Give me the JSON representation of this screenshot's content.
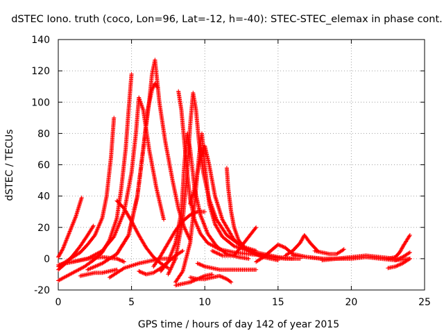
{
  "chart_data": {
    "type": "scatter",
    "title": "dSTEC Iono. truth (coco, Lon=96, Lat=-12, h=-40): STEC-STEC_elemax in phase cont.",
    "xlabel": "GPS time / hours of day 142 of year 2015",
    "ylabel": "dSTEC  / TECUs",
    "xlim": [
      0,
      25
    ],
    "ylim": [
      -20,
      140
    ],
    "xticks": [
      0,
      5,
      10,
      15,
      20,
      25
    ],
    "yticks": [
      -20,
      0,
      20,
      40,
      60,
      80,
      100,
      120,
      140
    ],
    "grid": true,
    "marker": "+",
    "color": "#ff0000",
    "arcs": [
      {
        "x": [
          0.0,
          0.3,
          0.6,
          0.9,
          1.2,
          1.4,
          1.6
        ],
        "y": [
          1,
          6,
          13,
          20,
          27,
          33,
          39
        ]
      },
      {
        "x": [
          0.0,
          0.5,
          1.0,
          1.5,
          2.0,
          2.4
        ],
        "y": [
          -7,
          -3,
          2,
          8,
          15,
          21
        ]
      },
      {
        "x": [
          0.0,
          0.5,
          1.0,
          1.5,
          2.0,
          2.5,
          3.0,
          3.3,
          3.6,
          3.8
        ],
        "y": [
          -5,
          -2,
          1,
          4,
          9,
          15,
          26,
          40,
          65,
          90
        ]
      },
      {
        "x": [
          0.0,
          0.6,
          1.2,
          1.8,
          2.4,
          3.0,
          3.5,
          4.0,
          4.3,
          4.6,
          4.8,
          5.0
        ],
        "y": [
          -14,
          -11,
          -8,
          -5,
          -1,
          4,
          12,
          26,
          45,
          70,
          95,
          118
        ]
      },
      {
        "x": [
          0.0,
          1.0,
          2.0,
          3.0,
          4.0,
          4.5
        ],
        "y": [
          -4,
          -2,
          0,
          1,
          0,
          -2
        ]
      },
      {
        "x": [
          1.5,
          2.0,
          2.5,
          3.0,
          3.5,
          4.0
        ],
        "y": [
          -11,
          -10,
          -9,
          -9,
          -8,
          -7
        ]
      },
      {
        "x": [
          1.0,
          2.0,
          3.0,
          3.8,
          4.5,
          5.0,
          5.3,
          5.5,
          5.8,
          6.2,
          6.7,
          7.2
        ],
        "y": [
          -2,
          0,
          5,
          14,
          30,
          55,
          80,
          103,
          95,
          70,
          45,
          25
        ]
      },
      {
        "x": [
          4.0,
          4.5,
          5.0,
          5.5,
          6.0,
          6.5,
          7.0,
          7.5
        ],
        "y": [
          37,
          32,
          24,
          15,
          7,
          1,
          -3,
          -6
        ]
      },
      {
        "x": [
          2.0,
          3.0,
          4.0,
          4.8,
          5.4,
          5.8,
          6.2,
          6.4,
          6.6,
          6.9,
          7.3,
          7.8,
          8.2,
          8.6,
          9.0
        ],
        "y": [
          -7,
          -3,
          3,
          15,
          40,
          70,
          100,
          118,
          127,
          100,
          75,
          50,
          32,
          20,
          12
        ]
      },
      {
        "x": [
          4.0,
          4.8,
          5.4,
          5.8,
          6.1,
          6.4,
          6.6,
          6.8
        ],
        "y": [
          3,
          15,
          40,
          70,
          95,
          108,
          112,
          109
        ]
      },
      {
        "x": [
          6.5,
          7.0,
          7.5,
          8.0,
          8.5,
          9.0,
          9.5,
          10.0
        ],
        "y": [
          -5,
          2,
          10,
          18,
          24,
          28,
          30,
          30
        ]
      },
      {
        "x": [
          3.5,
          4.5,
          5.5,
          6.0,
          6.5,
          7.0,
          7.5,
          8.0
        ],
        "y": [
          -12,
          -6,
          -3,
          -2,
          -1,
          0,
          0,
          0
        ]
      },
      {
        "x": [
          5.5,
          6.0,
          6.5,
          7.0,
          7.5,
          8.0,
          8.5
        ],
        "y": [
          -8,
          -10,
          -9,
          -6,
          -2,
          2,
          5
        ]
      },
      {
        "x": [
          7.0,
          7.5,
          8.0,
          8.4,
          8.6,
          8.8,
          9.0,
          9.3,
          9.7,
          10.2,
          10.8,
          11.5,
          12.3,
          13.0
        ],
        "y": [
          -8,
          -2,
          10,
          30,
          60,
          80,
          70,
          45,
          28,
          16,
          8,
          3,
          1,
          0
        ]
      },
      {
        "x": [
          8.2,
          8.4,
          8.6,
          8.8,
          9.0,
          9.3,
          9.7,
          10.2,
          11.0,
          12.0,
          13.0,
          14.0
        ],
        "y": [
          107,
          95,
          75,
          55,
          38,
          25,
          16,
          10,
          6,
          4,
          3,
          2
        ]
      },
      {
        "x": [
          7.5,
          8.0,
          8.5,
          8.8,
          9.0,
          9.2,
          9.4,
          9.6,
          9.9,
          10.3,
          10.8,
          11.5,
          12.5,
          13.5
        ],
        "y": [
          -10,
          0,
          25,
          55,
          85,
          106,
          95,
          75,
          55,
          38,
          25,
          15,
          8,
          5
        ]
      },
      {
        "x": [
          8.0,
          8.5,
          9.0,
          9.3,
          9.6,
          9.8,
          10.0,
          10.3,
          10.7,
          11.2,
          12.0,
          13.0,
          14.0,
          15.0,
          16.0
        ],
        "y": [
          -15,
          -8,
          10,
          35,
          65,
          80,
          60,
          35,
          22,
          14,
          8,
          5,
          3,
          1,
          0
        ]
      },
      {
        "x": [
          9.0,
          9.3,
          9.6,
          10.0,
          10.3,
          10.7,
          11.2,
          12.0,
          13.0,
          14.0,
          15.0
        ],
        "y": [
          35,
          45,
          60,
          72,
          60,
          40,
          25,
          12,
          5,
          1,
          -1
        ]
      },
      {
        "x": [
          8.0,
          8.5,
          9.0,
          9.5,
          10.0,
          10.5
        ],
        "y": [
          -17,
          -16,
          -15,
          -13,
          -11,
          -10
        ]
      },
      {
        "x": [
          9.0,
          9.5,
          10.0,
          10.5,
          11.0,
          11.5,
          11.8
        ],
        "y": [
          -12,
          -13,
          -13,
          -12,
          -11,
          -13,
          -15
        ]
      },
      {
        "x": [
          9.5,
          10.0,
          10.5,
          11.0,
          11.5,
          12.0,
          12.5,
          13.0,
          13.5
        ],
        "y": [
          -3,
          -5,
          -6,
          -7,
          -7,
          -7,
          -7,
          -7,
          -7
        ]
      },
      {
        "x": [
          11.5,
          11.6,
          11.8,
          12.0,
          12.3,
          12.8,
          13.5,
          14.5,
          15.5,
          16.5
        ],
        "y": [
          58,
          45,
          30,
          20,
          12,
          6,
          3,
          1,
          0,
          0
        ]
      },
      {
        "x": [
          10.5,
          11.2,
          12.0,
          12.5,
          13.0,
          13.5
        ],
        "y": [
          5,
          2,
          2,
          8,
          14,
          20
        ]
      },
      {
        "x": [
          13.5,
          14.0,
          14.5,
          15.0,
          15.5,
          16.0,
          17.0,
          18.0
        ],
        "y": [
          -2,
          1,
          5,
          9,
          7,
          3,
          1,
          0
        ]
      },
      {
        "x": [
          15.5,
          16.0,
          16.5,
          16.8,
          17.2,
          17.7
        ],
        "y": [
          2,
          5,
          10,
          15,
          10,
          5
        ]
      },
      {
        "x": [
          16.0,
          17.0,
          18.0,
          19.0,
          20.0,
          21.0,
          22.0,
          23.0,
          24.0
        ],
        "y": [
          2,
          1,
          0,
          0,
          0,
          1,
          0,
          -1,
          0
        ]
      },
      {
        "x": [
          17.5,
          18.0,
          18.5,
          19.0,
          19.5
        ],
        "y": [
          5,
          4,
          3,
          3,
          6
        ]
      },
      {
        "x": [
          18.0,
          19.0,
          20.0,
          21.0,
          22.0,
          23.0
        ],
        "y": [
          -1,
          0,
          1,
          2,
          1,
          0
        ]
      },
      {
        "x": [
          22.5,
          23.0,
          23.5,
          24.0
        ],
        "y": [
          -6,
          -5,
          -3,
          0
        ]
      },
      {
        "x": [
          22.5,
          23.0,
          23.3,
          23.6,
          24.0
        ],
        "y": [
          0,
          1,
          4,
          9,
          15
        ]
      },
      {
        "x": [
          23.0,
          23.5,
          24.0
        ],
        "y": [
          -1,
          1,
          4
        ]
      }
    ]
  }
}
